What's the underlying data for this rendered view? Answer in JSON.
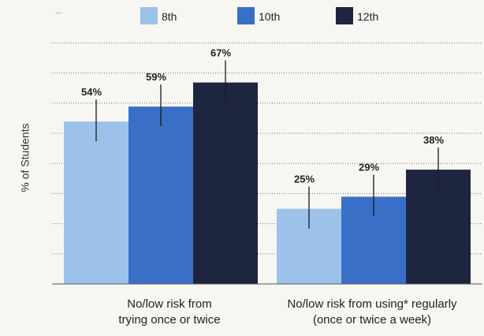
{
  "chart_data": {
    "type": "bar",
    "title": "",
    "xlabel": "",
    "ylabel": "% of Students",
    "ylim": [
      0,
      80
    ],
    "grid": true,
    "legend_position": "top-center",
    "categories": [
      [
        "No/low risk from",
        "trying once or twice"
      ],
      [
        "No/low risk from using* regularly",
        "(once or twice a week)"
      ]
    ],
    "series": [
      {
        "name": "8th",
        "color": "#9cc2ea",
        "values": [
          54,
          25
        ],
        "labels": [
          "54%",
          "25%"
        ]
      },
      {
        "name": "10th",
        "color": "#3a6fc8",
        "values": [
          59,
          29
        ],
        "labels": [
          "59%",
          "29%"
        ]
      },
      {
        "name": "12th",
        "color": "#1e2540",
        "values": [
          67,
          38
        ],
        "labels": [
          "67%",
          "38%"
        ]
      }
    ],
    "axis_tick_text": "..."
  }
}
